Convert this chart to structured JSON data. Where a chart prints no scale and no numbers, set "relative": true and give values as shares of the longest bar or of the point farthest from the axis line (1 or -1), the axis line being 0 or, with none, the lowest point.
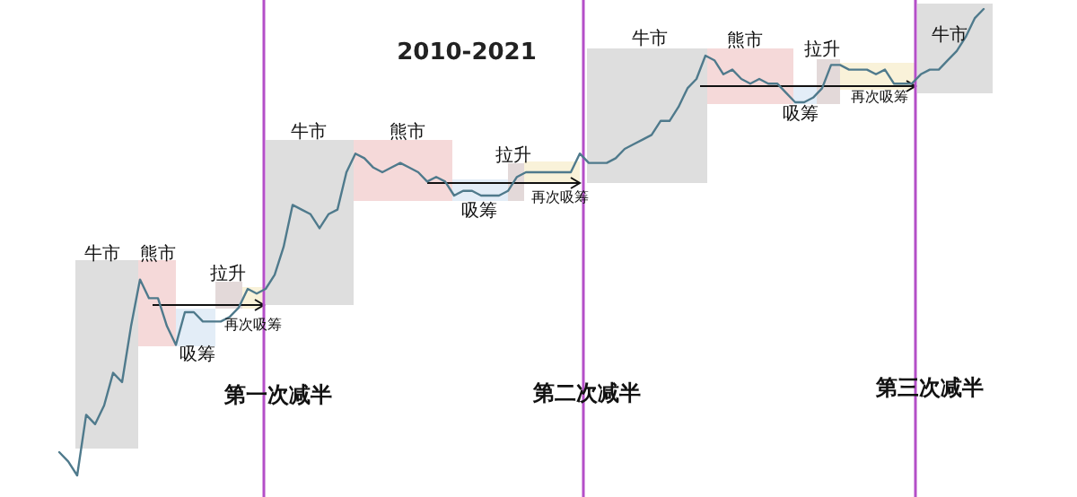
{
  "chart_data": {
    "type": "line",
    "title": "2010-2021",
    "relative": true,
    "grid": false,
    "marker": "none",
    "line_style": "solid",
    "categories": [
      null,
      null,
      null,
      null,
      null,
      null,
      null,
      null,
      null,
      null,
      null,
      null,
      null,
      null,
      null,
      null,
      null,
      null,
      null,
      null,
      null,
      null,
      null,
      null,
      null,
      null,
      null,
      null,
      null,
      null,
      null,
      null,
      null,
      null,
      null,
      null,
      null,
      null,
      null,
      null,
      null,
      null,
      null,
      null,
      null,
      null,
      null,
      null,
      null,
      null,
      null,
      null,
      null,
      null,
      null,
      null,
      null,
      null,
      null,
      null,
      null,
      null,
      null,
      null,
      null,
      null,
      null,
      null,
      null,
      null,
      null,
      null,
      null,
      null,
      null,
      null,
      null,
      null,
      null,
      null,
      null,
      null,
      null,
      null,
      null,
      null,
      null,
      null,
      null,
      null,
      null,
      null,
      null,
      null,
      null,
      null,
      null,
      null,
      null,
      null,
      null,
      null,
      null,
      null
    ],
    "series": [
      {
        "color": "#4f7a8c",
        "values": [
          0.05,
          0.03,
          0,
          0.13,
          0.11,
          0.15,
          0.22,
          0.2,
          0.32,
          0.42,
          0.38,
          0.38,
          0.32,
          0.28,
          0.35,
          0.35,
          0.33,
          0.33,
          0.33,
          0.34,
          0.36,
          0.4,
          0.39,
          0.4,
          0.43,
          0.49,
          0.58,
          0.57,
          0.56,
          0.53,
          0.56,
          0.57,
          0.65,
          0.69,
          0.68,
          0.66,
          0.65,
          0.66,
          0.67,
          0.66,
          0.65,
          0.63,
          0.64,
          0.63,
          0.6,
          0.61,
          0.61,
          0.6,
          0.6,
          0.6,
          0.61,
          0.64,
          0.65,
          0.65,
          0.65,
          0.65,
          0.65,
          0.65,
          0.69,
          0.67,
          0.67,
          0.67,
          0.68,
          0.7,
          0.71,
          0.72,
          0.73,
          0.76,
          0.76,
          0.79,
          0.83,
          0.85,
          0.9,
          0.89,
          0.86,
          0.87,
          0.85,
          0.84,
          0.85,
          0.84,
          0.84,
          0.82,
          0.8,
          0.8,
          0.81,
          0.83,
          0.88,
          0.88,
          0.87,
          0.87,
          0.87,
          0.86,
          0.87,
          0.84,
          0.84,
          0.84,
          0.86,
          0.87,
          0.87,
          0.89,
          0.91,
          0.94,
          0.98,
          1
        ]
      }
    ],
    "annotations": [
      "牛市",
      "熊市",
      "吸筹",
      "拉升",
      "再次吸筹",
      "第一次减半",
      "牛市",
      "熊市",
      "吸筹",
      "拉升",
      "再次吸筹",
      "第二次减半",
      "牛市",
      "熊市",
      "吸筹",
      "拉升",
      "再次吸筹",
      "第三次减半",
      "牛市"
    ]
  }
}
